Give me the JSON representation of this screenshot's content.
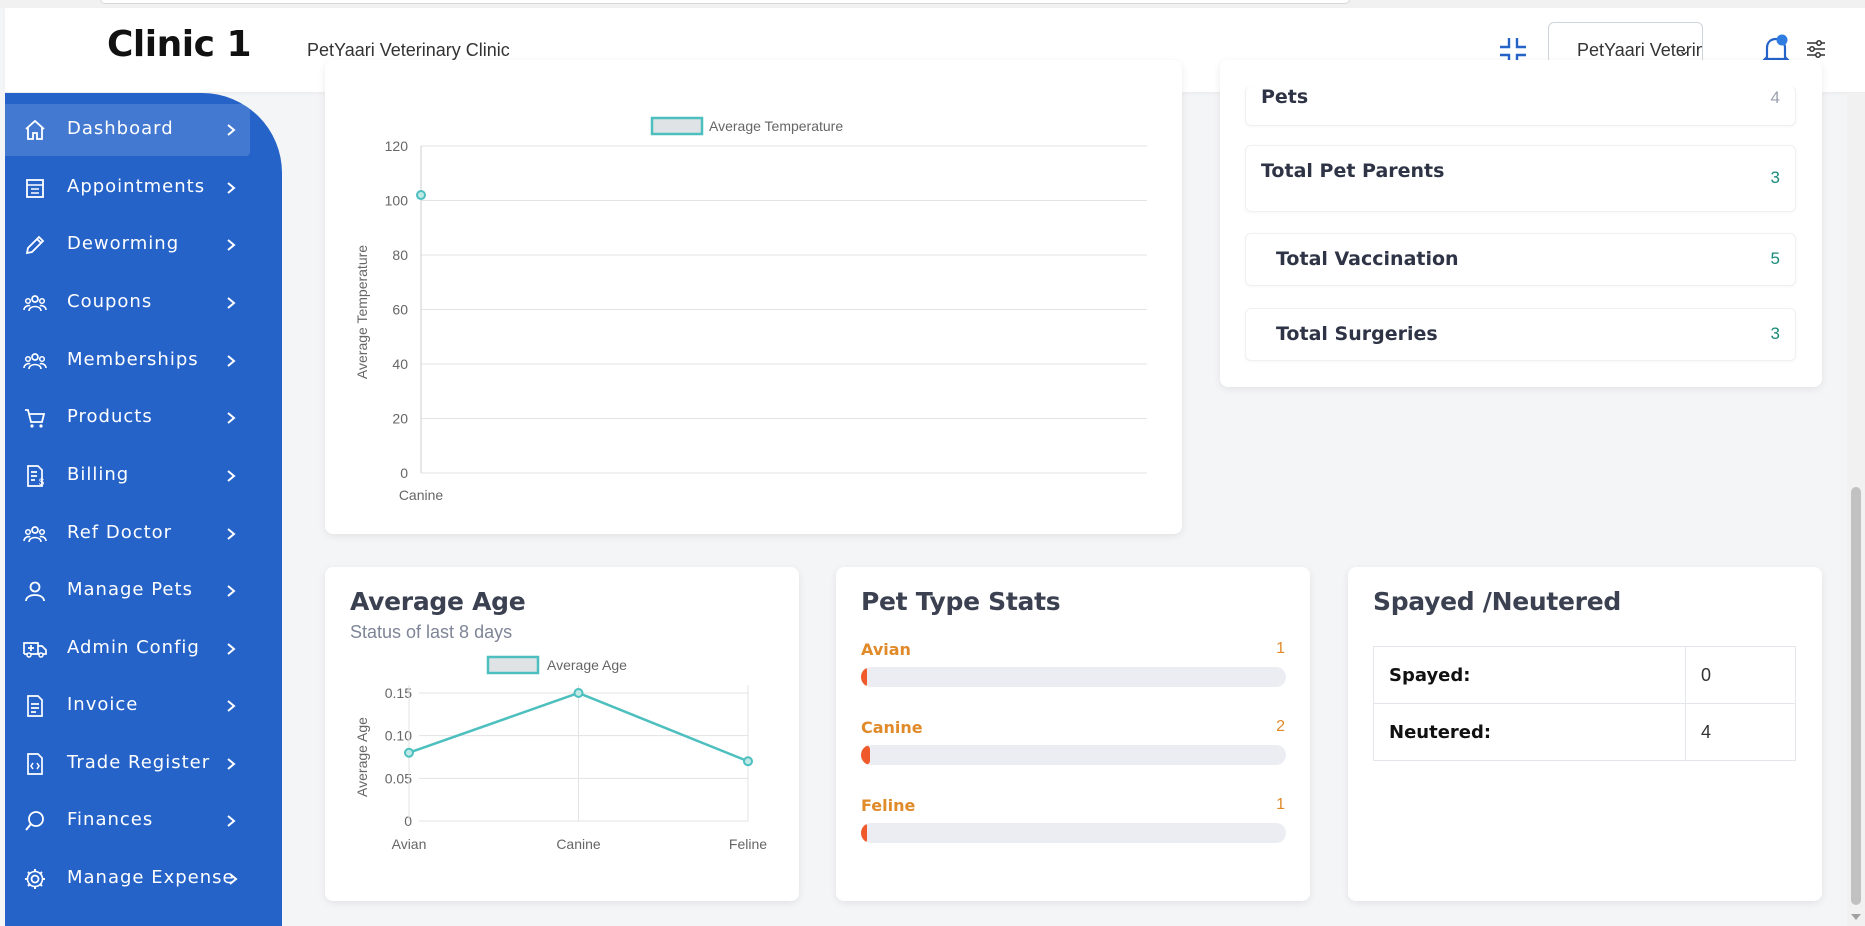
{
  "header": {
    "brand": "Clinic 1",
    "clinic_name": "PetYaari Veterinary Clinic",
    "clinic_select_value": "PetYaari Veterinary Clinic",
    "icons": [
      "shrink-icon",
      "bell-icon",
      "settings-sliders-icon"
    ],
    "notification_dot_color": "#2f7de1"
  },
  "sidebar": {
    "color": "#2563c9",
    "items": [
      {
        "label": "Dashboard",
        "icon": "home-icon",
        "active": true
      },
      {
        "label": "Appointments",
        "icon": "calendar-icon"
      },
      {
        "label": "Deworming",
        "icon": "pencil-icon"
      },
      {
        "label": "Coupons",
        "icon": "users-icon"
      },
      {
        "label": "Memberships",
        "icon": "users-icon"
      },
      {
        "label": "Products",
        "icon": "cart-icon"
      },
      {
        "label": "Billing",
        "icon": "bill-icon"
      },
      {
        "label": "Ref Doctor",
        "icon": "users-icon"
      },
      {
        "label": "Manage Pets",
        "icon": "user-icon"
      },
      {
        "label": "Admin Config",
        "icon": "ambulance-icon"
      },
      {
        "label": "Invoice",
        "icon": "document-icon"
      },
      {
        "label": "Trade Register",
        "icon": "code-file-icon"
      },
      {
        "label": "Finances",
        "icon": "search-icon"
      },
      {
        "label": "Manage Expense",
        "icon": "gear-icon"
      }
    ]
  },
  "stats": {
    "pets": {
      "label": "Pets",
      "value": "4"
    },
    "pet_parents": {
      "label": "Total Pet Parents",
      "value": "3"
    },
    "vaccination": {
      "label": "Total Vaccination",
      "value": "5"
    },
    "surgeries": {
      "label": "Total Surgeries",
      "value": "3"
    }
  },
  "temp_chart": {
    "legend": "Average Temperature",
    "ylabel": "Average Temperature",
    "y_ticks": [
      "120",
      "100",
      "80",
      "60",
      "40",
      "20",
      "0"
    ],
    "categories": [
      "Canine"
    ]
  },
  "age_card": {
    "title": "Average Age",
    "subtitle": "Status of last 8 days",
    "legend": "Average Age",
    "ylabel": "Average Age",
    "y_ticks": [
      "0.15",
      "0.10",
      "0.05",
      "0"
    ]
  },
  "pet_type": {
    "title": "Pet Type Stats",
    "items": [
      {
        "label": "Avian",
        "count": "1",
        "fraction": 0.01
      },
      {
        "label": "Canine",
        "count": "2",
        "fraction": 0.02
      },
      {
        "label": "Feline",
        "count": "1",
        "fraction": 0.01
      }
    ]
  },
  "spayed": {
    "title": "Spayed /Neutered",
    "rows": [
      {
        "label": "Spayed:",
        "value": "0"
      },
      {
        "label": "Neutered:",
        "value": "4"
      }
    ]
  },
  "chart_data": [
    {
      "type": "line",
      "categories": [
        "Canine"
      ],
      "series": [
        {
          "name": "Average Temperature",
          "values": [
            102
          ]
        }
      ],
      "ylabel": "Average Temperature",
      "ylim": [
        0,
        120
      ],
      "grid": true,
      "legend": "top"
    },
    {
      "type": "line",
      "categories": [
        "Avian",
        "Canine",
        "Feline"
      ],
      "series": [
        {
          "name": "Average Age",
          "values": [
            0.08,
            0.15,
            0.07
          ]
        }
      ],
      "ylabel": "Average Age",
      "ylim": [
        0,
        0.15
      ],
      "grid": true,
      "legend": "top"
    }
  ],
  "colors": {
    "line": "#4dbfbf",
    "accent": "#2563c9",
    "bar_fill": "#f05a2a",
    "pet_label": "#e08a2a"
  }
}
